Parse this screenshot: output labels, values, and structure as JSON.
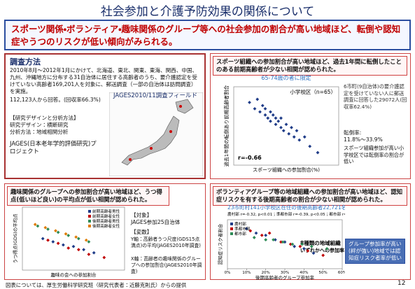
{
  "title": "社会参加と介護予防効果の関係について",
  "headline": "スポーツ関係・ボランティア・趣味関係のグループ等への社会参加の割合が高い地域ほど、転倒や認知症やうつのリスクが低い傾向がみられる。",
  "method": {
    "heading": "調査方法",
    "text": "2010年8月～2012年1月にかけて、北海道、東北、関東、東海、関西、中国、九州、沖縄地方に分布する31自治体に居住する高齢者のうち、要介護認定を受けていない高齢者169,201人を対象に、郵送調査（一部の自治体は訪問調査）を実施。",
    "result": "112,123人から回答。(回収率66.3%)",
    "design_heading": "【研究デザインと分析方法】",
    "design": "研究デザイン：横断研究",
    "analysis": "分析方法：地域相関分析",
    "project": "JAGES(日本老年学的評価研究)プロジェクト",
    "map_caption": "JAGES2010/11調査フィールド"
  },
  "fall_panel": {
    "header": "スポーツ組織への参加割合が高い地域ほど、過去1年間に転倒したことのある前期高齢者が少ない相関が認められた。",
    "survey": "6市町(9自治体)の要介護認定を受けていない人に郵送調査に回答した29072人(回収率62.4%)",
    "rate_label": "転倒率:",
    "rate_range": "11.8%～33.9%",
    "finding": "スポーツ組織参加が高い小学校区では転倒率の割合が低い"
  },
  "depression_panel": {
    "header": "趣味関係のグループへの参加割合が高い地域ほど、うつ得点(低いほど良い)の平均点が低い相関が認められた。",
    "target_heading": "【対象】",
    "target": "JAGES参加25自治体",
    "variable_heading": "【変数】",
    "y_variable": "Y軸：高齢者うつ尺度(GDS15点満点)の平均(JAGES2010年調査)",
    "x_variable": "X軸：高齢者の趣味関係のグループへの参加割合(JAGES2010年調査)"
  },
  "dementia_panel": {
    "header": "ボランティアグループ等の地域組織への参加割合が高い地域ほど、認知症リスクを有する後期高齢者の割合が少ない相関が認められた。",
    "callout": "グループ参加率が高い(絆が強い)地域では認知症リスク者率が低い"
  },
  "chart_data": [
    {
      "type": "scatter",
      "title": "65-74歳の者に限定",
      "subtitle": "小学校区（n=65）",
      "annotation": "r=-0.66",
      "x_label": "スポーツ組織への参加割合(%)",
      "y_label": "過去1年間の転倒あり前期高齢者割合",
      "xlim": [
        0,
        40
      ],
      "ylim": [
        10,
        35
      ],
      "series": [
        {
          "color": "#1f3c88",
          "x": [
            6,
            8,
            9,
            10,
            11,
            12,
            12,
            13,
            14,
            14,
            15,
            16,
            16,
            17,
            18,
            18,
            19,
            20,
            21,
            22,
            23,
            24,
            25,
            27,
            29,
            32
          ],
          "values": [
            30,
            28,
            31,
            27,
            29,
            26,
            28,
            25,
            27,
            24,
            26,
            23,
            25,
            24,
            22,
            25,
            21,
            23,
            20,
            22,
            19,
            21,
            18,
            19,
            16,
            14
          ]
        }
      ]
    },
    {
      "type": "scatter",
      "x_label": "趣味の会への参加割合",
      "y_label": "うつ得点(GDS)の平均点",
      "xlim": [
        0,
        40
      ],
      "ylim": [
        2,
        6
      ],
      "series": [
        {
          "name": "前期高齢者男性",
          "color": "#1f3c88",
          "x": [
            8,
            12,
            16,
            20,
            24,
            28
          ],
          "values": [
            4.0,
            3.8,
            3.6,
            3.5,
            3.3,
            3.1
          ]
        },
        {
          "name": "前期高齢者女性",
          "color": "#c00000",
          "x": [
            10,
            14,
            18,
            22,
            26,
            32
          ],
          "values": [
            3.9,
            3.7,
            3.4,
            3.3,
            3.0,
            2.8
          ]
        },
        {
          "name": "後期高齢者男性",
          "color": "#2e8b57",
          "x": [
            6,
            10,
            14,
            18,
            22,
            26
          ],
          "values": [
            4.8,
            4.6,
            4.4,
            4.2,
            4.0,
            3.8
          ]
        },
        {
          "name": "後期高齢者女性",
          "color": "#e07b00",
          "x": [
            5,
            9,
            13,
            17,
            21,
            25
          ],
          "values": [
            4.9,
            4.7,
            4.5,
            4.3,
            4.1,
            3.9
          ]
        }
      ]
    },
    {
      "type": "scatter",
      "title": "23市町村141小学校区在住の後期高齢者22,721名",
      "subtitle": "農村部 r=-0.32, p<0.01；準都市部 r=-0.39, p<0.05；都市部 r=-0.051",
      "annotation": "8種類の地域組織",
      "annotation2": "いずれかへの参加率",
      "x_label": "後期高齢者のグループ参加率",
      "y_label": "認知症リスク者割合",
      "xlim": [
        0,
        60
      ],
      "ylim": [
        10,
        32
      ],
      "xticks": [
        {
          "value": 0,
          "label": "0%"
        },
        {
          "value": 10,
          "label": "10%"
        },
        {
          "value": 20,
          "label": "20%"
        },
        {
          "value": 30,
          "label": "30%"
        },
        {
          "value": 40,
          "label": "40%"
        },
        {
          "value": 50,
          "label": "50%"
        },
        {
          "value": 60,
          "label": "60%"
        }
      ],
      "series": [
        {
          "name": "農村部",
          "color": "#1f3c88",
          "x": [
            10,
            15,
            20,
            25,
            30,
            35,
            40,
            45
          ],
          "values": [
            28,
            26,
            25,
            23,
            22,
            20,
            19,
            17
          ]
        },
        {
          "name": "準都市部",
          "color": "#c00000",
          "x": [
            12,
            18,
            22,
            28,
            33,
            38,
            42,
            50
          ],
          "values": [
            27,
            25,
            26,
            22,
            21,
            20,
            18,
            16
          ]
        },
        {
          "name": "都市部",
          "color": "#2e8b57",
          "x": [
            14,
            20,
            24,
            29,
            34,
            39,
            44,
            52
          ],
          "values": [
            24,
            23,
            23,
            22,
            21,
            21,
            20,
            19
          ]
        }
      ]
    }
  ],
  "footer": "図表については、厚生労働科学研究班（研究代表者：近藤克則氏）からの提供",
  "page_number": "12"
}
